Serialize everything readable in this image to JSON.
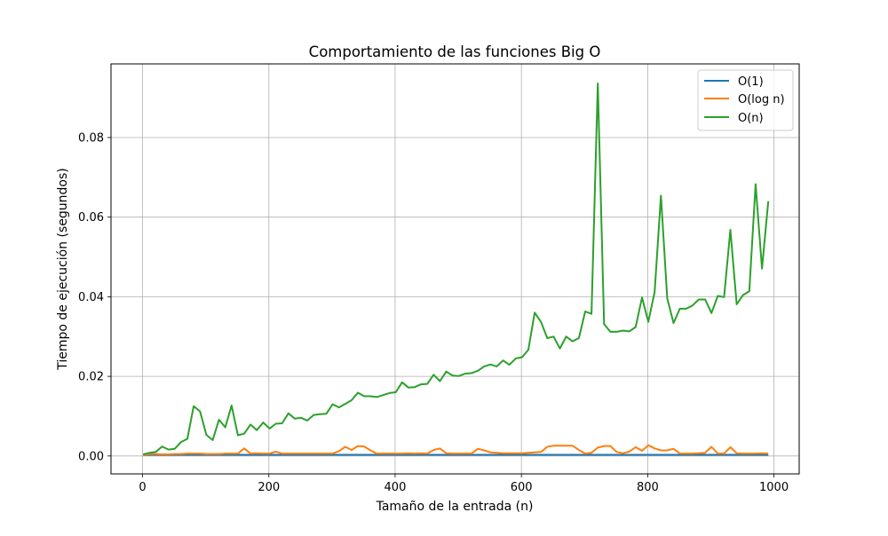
{
  "chart_data": {
    "type": "line",
    "title": "Comportamiento de las funciones Big O",
    "xlabel": "Tamaño de la entrada (n)",
    "ylabel": "Tiempo de ejecución (segundos)",
    "xlim": [
      -50,
      1040
    ],
    "ylim": [
      -0.0045,
      0.0985
    ],
    "xticks": [
      0,
      200,
      400,
      600,
      800,
      1000
    ],
    "xtick_labels": [
      "0",
      "200",
      "400",
      "600",
      "800",
      "1000"
    ],
    "yticks": [
      0,
      0.02,
      0.04,
      0.06,
      0.08
    ],
    "ytick_labels": [
      "0.00",
      "0.02",
      "0.04",
      "0.06",
      "0.08"
    ],
    "grid": true,
    "legend_position": "top-right",
    "x": [
      1,
      11,
      21,
      31,
      41,
      51,
      61,
      71,
      81,
      91,
      101,
      111,
      121,
      131,
      141,
      151,
      161,
      171,
      181,
      191,
      201,
      211,
      221,
      231,
      241,
      251,
      261,
      271,
      281,
      291,
      301,
      311,
      321,
      331,
      341,
      351,
      361,
      371,
      381,
      391,
      401,
      411,
      421,
      431,
      441,
      451,
      461,
      471,
      481,
      491,
      501,
      511,
      521,
      531,
      541,
      551,
      561,
      571,
      581,
      591,
      601,
      611,
      621,
      631,
      641,
      651,
      661,
      671,
      681,
      691,
      701,
      711,
      721,
      731,
      741,
      751,
      761,
      771,
      781,
      791,
      801,
      811,
      821,
      831,
      841,
      851,
      861,
      871,
      881,
      891,
      901,
      911,
      921,
      931,
      941,
      951,
      961,
      971,
      981,
      991
    ],
    "series": [
      {
        "name": "O(1)",
        "color": "#1f77b4",
        "values": [
          0.0002,
          0.0003,
          0.0003,
          0.0003,
          0.0003,
          0.0003,
          0.0003,
          0.0003,
          0.0003,
          0.0003,
          0.0003,
          0.0003,
          0.0003,
          0.0003,
          0.0003,
          0.0003,
          0.0003,
          0.0003,
          0.0003,
          0.0003,
          0.0003,
          0.0003,
          0.0003,
          0.0003,
          0.0003,
          0.0003,
          0.0003,
          0.0003,
          0.0003,
          0.0003,
          0.0003,
          0.0003,
          0.0003,
          0.0003,
          0.0003,
          0.0003,
          0.0003,
          0.0003,
          0.0003,
          0.0003,
          0.0003,
          0.0003,
          0.0003,
          0.0003,
          0.0003,
          0.0003,
          0.0003,
          0.0003,
          0.0003,
          0.0003,
          0.0003,
          0.0003,
          0.0003,
          0.0003,
          0.0003,
          0.0003,
          0.0003,
          0.0003,
          0.0003,
          0.0003,
          0.0003,
          0.0003,
          0.0003,
          0.0003,
          0.0003,
          0.0003,
          0.0003,
          0.0003,
          0.0003,
          0.0003,
          0.0003,
          0.0003,
          0.0003,
          0.0003,
          0.0003,
          0.0003,
          0.0003,
          0.0003,
          0.0003,
          0.0003,
          0.0003,
          0.0003,
          0.0003,
          0.0003,
          0.0003,
          0.0003,
          0.0003,
          0.0003,
          0.0003,
          0.0003,
          0.0003,
          0.0003,
          0.0003,
          0.0003,
          0.0003,
          0.0003,
          0.0003,
          0.0003,
          0.0003,
          0.0003
        ]
      },
      {
        "name": "O(log n)",
        "color": "#ff7f0e",
        "values": [
          0.0002,
          0.0005,
          0.0005,
          0.0004,
          0.0004,
          0.0005,
          0.0005,
          0.0006,
          0.0006,
          0.0006,
          0.0005,
          0.0005,
          0.0005,
          0.0006,
          0.0006,
          0.0006,
          0.0019,
          0.0006,
          0.0007,
          0.0006,
          0.0006,
          0.0011,
          0.0006,
          0.0006,
          0.0006,
          0.0006,
          0.0006,
          0.0006,
          0.0006,
          0.0006,
          0.0006,
          0.0012,
          0.0023,
          0.0015,
          0.0025,
          0.0024,
          0.0014,
          0.0006,
          0.0006,
          0.0006,
          0.0006,
          0.0006,
          0.0007,
          0.0006,
          0.0007,
          0.0006,
          0.0015,
          0.0019,
          0.0007,
          0.0006,
          0.0006,
          0.0006,
          0.0006,
          0.0018,
          0.0014,
          0.0009,
          0.0008,
          0.0007,
          0.0007,
          0.0007,
          0.0007,
          0.0008,
          0.0009,
          0.001,
          0.0023,
          0.0026,
          0.0026,
          0.0026,
          0.0026,
          0.0015,
          0.0006,
          0.0008,
          0.0021,
          0.0025,
          0.0025,
          0.001,
          0.0007,
          0.0011,
          0.0022,
          0.0013,
          0.0027,
          0.0019,
          0.0014,
          0.0014,
          0.0018,
          0.0006,
          0.0006,
          0.0006,
          0.0007,
          0.0008,
          0.0023,
          0.0006,
          0.0006,
          0.0022,
          0.0007,
          0.0006,
          0.0006,
          0.0006,
          0.0007,
          0.0006
        ]
      },
      {
        "name": "O(n)",
        "color": "#2ca02c",
        "values": [
          0.0004,
          0.0008,
          0.001,
          0.0024,
          0.0016,
          0.0018,
          0.0035,
          0.0043,
          0.0125,
          0.0112,
          0.0053,
          0.004,
          0.0091,
          0.0072,
          0.0127,
          0.0052,
          0.0056,
          0.0079,
          0.0065,
          0.0084,
          0.0069,
          0.0081,
          0.0082,
          0.0107,
          0.0094,
          0.0096,
          0.0089,
          0.0103,
          0.0105,
          0.0106,
          0.013,
          0.0122,
          0.0131,
          0.014,
          0.0159,
          0.015,
          0.015,
          0.0148,
          0.0153,
          0.0158,
          0.016,
          0.0185,
          0.0172,
          0.0173,
          0.018,
          0.0181,
          0.0204,
          0.0188,
          0.0212,
          0.0202,
          0.0201,
          0.0207,
          0.0208,
          0.0214,
          0.0225,
          0.023,
          0.0225,
          0.024,
          0.0229,
          0.0245,
          0.0248,
          0.0267,
          0.036,
          0.0337,
          0.0296,
          0.03,
          0.027,
          0.03,
          0.0288,
          0.0296,
          0.0363,
          0.0357,
          0.0936,
          0.0331,
          0.0312,
          0.0312,
          0.0315,
          0.0313,
          0.0324,
          0.0398,
          0.0337,
          0.0412,
          0.0654,
          0.0396,
          0.0334,
          0.037,
          0.037,
          0.0378,
          0.0393,
          0.0393,
          0.0359,
          0.0402,
          0.0399,
          0.0568,
          0.0381,
          0.0404,
          0.0414,
          0.0683,
          0.0471,
          0.064
        ]
      }
    ]
  }
}
